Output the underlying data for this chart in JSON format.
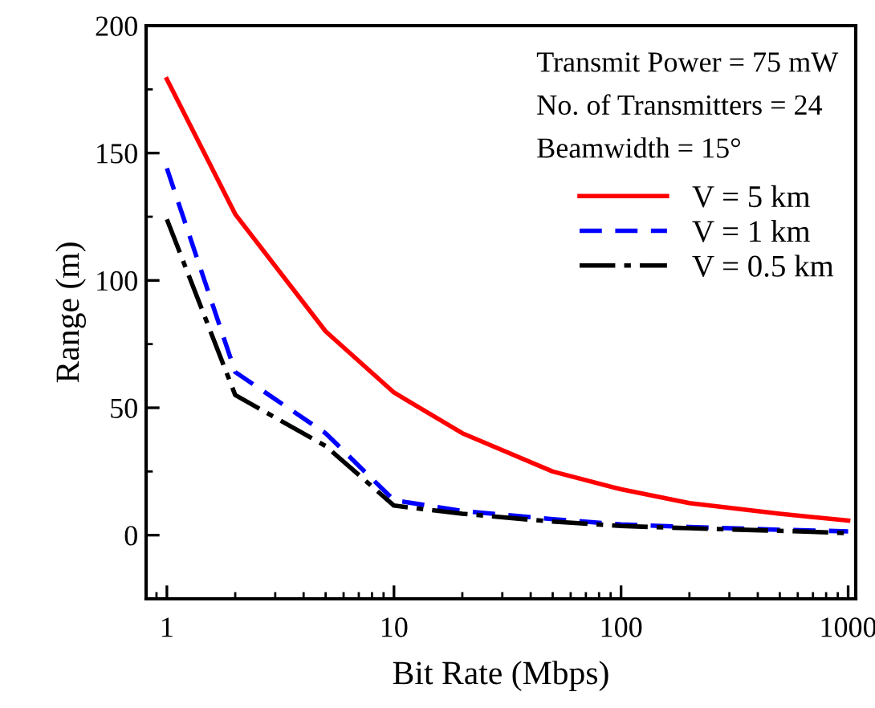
{
  "chart_data": {
    "type": "line",
    "xlabel": "Bit Rate (Mbps)",
    "ylabel": "Range (m)",
    "log": "x",
    "x": [
      1,
      2,
      5,
      10,
      20,
      50,
      100,
      200,
      500,
      1000
    ],
    "xlim": [
      0.81,
      1080
    ],
    "xticks": [
      1,
      10,
      100,
      1000
    ],
    "ylim": [
      -25,
      200
    ],
    "yticks": [
      0,
      50,
      100,
      150,
      200
    ],
    "annotations": [
      "Transmit Power = 75 mW",
      "No. of Transmitters = 24",
      "Beamwidth = 15°"
    ],
    "legend": "top right",
    "grid": false,
    "marker": "none",
    "series": [
      {
        "name": "V = 5 km",
        "color": "#ff0000",
        "line_style": "solid",
        "values": [
          179,
          126,
          80,
          56,
          40,
          25,
          18,
          12.6,
          8.4,
          5.7
        ]
      },
      {
        "name": "V = 1 km",
        "color": "#0000ff",
        "line_style": "dashed",
        "values": [
          144,
          64,
          40,
          13.7,
          9.5,
          6.3,
          4.2,
          3.2,
          2.1,
          1.5
        ]
      },
      {
        "name": "V = 0.5 km",
        "color": "#000000",
        "line_style": "dashdot",
        "values": [
          124,
          55,
          35,
          11.6,
          8.4,
          5.3,
          3.6,
          2.7,
          1.7,
          0.8
        ]
      }
    ]
  }
}
